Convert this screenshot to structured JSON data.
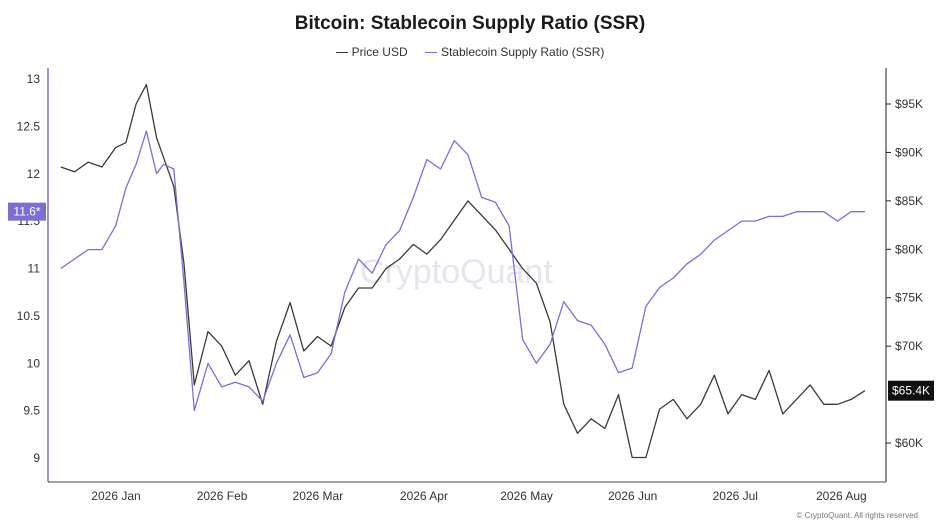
{
  "header": {
    "title": "Bitcoin: Stablecoin Supply Ratio (SSR)",
    "legend": [
      "Price USD",
      "Stablecoin Supply Ratio (SSR)"
    ]
  },
  "watermark": "CryptoQuant",
  "footer": "© CryptoQuant. All rights reserved",
  "colors": {
    "price": "#3a3a3a",
    "ssr": "#7b6fd6",
    "ssr_axis": "#7b6fd6",
    "price_tag_bg": "#111111"
  },
  "chart_data": {
    "type": "line",
    "title": "Bitcoin: Stablecoin Supply Ratio (SSR)",
    "x": [
      "2026-01-03",
      "2026-01-07",
      "2026-01-11",
      "2026-01-15",
      "2026-01-19",
      "2026-01-22",
      "2026-01-25",
      "2026-01-28",
      "2026-01-31",
      "2026-02-02",
      "2026-02-05",
      "2026-02-08",
      "2026-02-11",
      "2026-02-15",
      "2026-02-19",
      "2026-02-23",
      "2026-02-27",
      "2026-03-03",
      "2026-03-07",
      "2026-03-11",
      "2026-03-15",
      "2026-03-19",
      "2026-03-23",
      "2026-03-27",
      "2026-03-31",
      "2026-04-04",
      "2026-04-08",
      "2026-04-12",
      "2026-04-16",
      "2026-04-20",
      "2026-04-24",
      "2026-04-28",
      "2026-05-02",
      "2026-05-06",
      "2026-05-10",
      "2026-05-14",
      "2026-05-18",
      "2026-05-22",
      "2026-05-26",
      "2026-05-30",
      "2026-06-03",
      "2026-06-07",
      "2026-06-11",
      "2026-06-15",
      "2026-06-19",
      "2026-06-23",
      "2026-06-27",
      "2026-07-01",
      "2026-07-05",
      "2026-07-09",
      "2026-07-13",
      "2026-07-17",
      "2026-07-21",
      "2026-07-25",
      "2026-07-29",
      "2026-08-02",
      "2026-08-06",
      "2026-08-10",
      "2026-08-14",
      "2026-08-18",
      "2026-08-22",
      "2026-08-26"
    ],
    "x_ticks": [
      "2026 Jan",
      "2026 Feb",
      "2026 Mar",
      "2026 Apr",
      "2026 May",
      "2026 Jun",
      "2026 Jul",
      "2026 Aug"
    ],
    "series": [
      {
        "name": "Price USD",
        "axis": "right",
        "values": [
          88500,
          88000,
          89000,
          88500,
          90500,
          91000,
          95000,
          97000,
          91500,
          89500,
          86500,
          78500,
          66000,
          71500,
          70000,
          67000,
          68500,
          64000,
          70500,
          74500,
          69500,
          71000,
          70000,
          74000,
          76000,
          76000,
          78000,
          79000,
          80500,
          79500,
          81000,
          83000,
          85000,
          83500,
          82000,
          80000,
          78000,
          76500,
          72500,
          64000,
          61000,
          62500,
          61500,
          65000,
          58500,
          58500,
          63500,
          64500,
          62500,
          64000,
          67000,
          63000,
          65000,
          64500,
          67500,
          63000,
          64500,
          66000,
          64000,
          64000,
          64500,
          65400
        ]
      },
      {
        "name": "Stablecoin Supply Ratio (SSR)",
        "axis": "left",
        "values": [
          11.0,
          11.1,
          11.2,
          11.2,
          11.45,
          11.85,
          12.1,
          12.45,
          12.0,
          12.1,
          12.05,
          10.85,
          9.5,
          10.0,
          9.75,
          9.8,
          9.75,
          9.6,
          10.0,
          10.3,
          9.85,
          9.9,
          10.1,
          10.75,
          11.1,
          10.95,
          11.25,
          11.4,
          11.75,
          12.15,
          12.05,
          12.35,
          12.2,
          11.75,
          11.7,
          11.45,
          10.25,
          10.0,
          10.2,
          10.65,
          10.45,
          10.4,
          10.2,
          9.9,
          9.95,
          10.6,
          10.8,
          10.9,
          11.05,
          11.15,
          11.3,
          11.4,
          11.5,
          11.5,
          11.55,
          11.55,
          11.6,
          11.6,
          11.6,
          11.5,
          11.6,
          11.6
        ]
      }
    ],
    "left_axis": {
      "ticks": [
        13,
        12.5,
        12,
        11.5,
        11,
        10.5,
        10,
        9.5,
        9
      ],
      "tick_labels": [
        "13",
        "12.5",
        "12",
        "11.5",
        "11",
        "10.5",
        "10",
        "9.5",
        "9"
      ],
      "current_label": "11.6*",
      "current_value": 11.6
    },
    "right_axis": {
      "ticks": [
        95000,
        90000,
        85000,
        80000,
        75000,
        70000,
        60000
      ],
      "tick_labels": [
        "$95K",
        "$90K",
        "$85K",
        "$80K",
        "$75K",
        "$70K",
        "$60K"
      ],
      "current_label": "$65.4K",
      "current_value": 65400
    },
    "grid": false,
    "legend_position": "top-center"
  }
}
